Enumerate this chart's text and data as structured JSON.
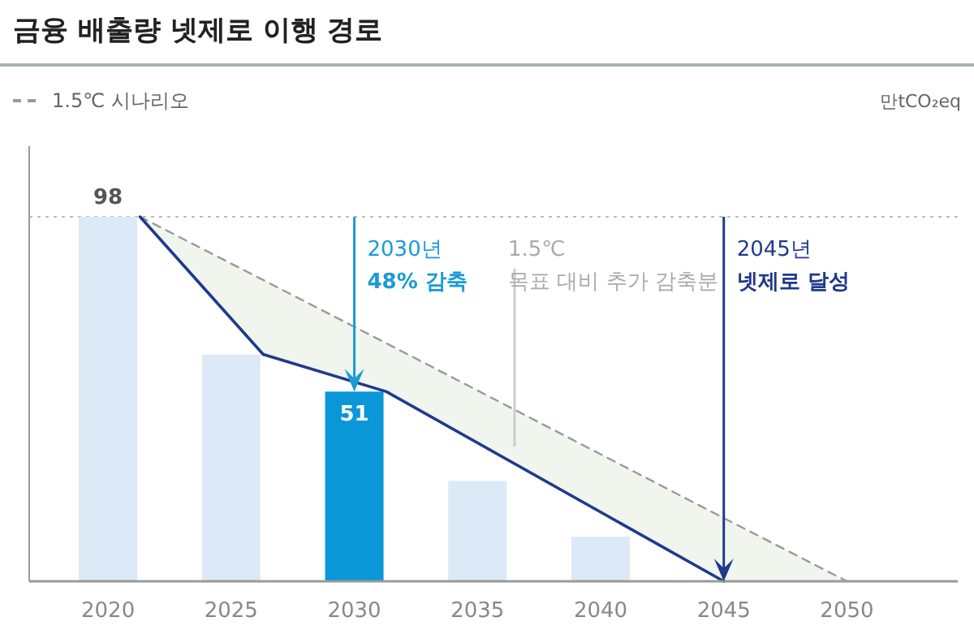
{
  "chart_data": {
    "type": "bar",
    "title": "금융 배출량 넷제로 이행 경로",
    "ylabel": "만tCO₂eq",
    "x": [
      2020,
      2025,
      2030,
      2035,
      2040
    ],
    "xlim": [
      2016.8,
      2054.5
    ],
    "xticks": [
      2020,
      2025,
      2030,
      2035,
      2040,
      2045,
      2050
    ],
    "ylim": [
      0,
      117
    ],
    "tick_labels": "x",
    "legend": "top left",
    "series": [
      {
        "values": [
          98,
          61,
          51,
          27,
          12
        ],
        "colors": [
          "#dce9f6",
          "#dce9f6",
          "#0a97d8",
          "#dce9f6",
          "#dce9f6"
        ],
        "value_labels": [
          "98",
          null,
          "51",
          null,
          null
        ]
      },
      {
        "type": "line",
        "name": "1.5℃ 시나리오",
        "color": "#9a9a9a",
        "line_style": "dashed",
        "x": [
          2021.3,
          2026.3,
          2031.3,
          2045,
          2050
        ],
        "values": [
          98,
          81,
          64,
          17,
          0
        ],
        "lower": [
          98,
          61,
          51,
          0,
          0
        ],
        "upper": [
          98,
          81,
          64,
          17,
          0
        ]
      },
      {
        "type": "line",
        "color": "#1f3a8c",
        "line_style": "solid",
        "x": [
          2021.3,
          2026.3,
          2031.3,
          2045
        ],
        "values": [
          98,
          61,
          51,
          0
        ]
      }
    ],
    "ref_lines": [
      {
        "axis": "y",
        "value": 98,
        "color": "#bbbbbb",
        "line_style": "dotted"
      }
    ],
    "annotations": [
      {
        "text": "2030년\n48% 감축",
        "x": 2030,
        "y": 51
      },
      {
        "text": "2045년\n넷제로 달성",
        "x": 2045,
        "y": 0
      },
      "1.5℃\n목표 대비 추가 감축분"
    ]
  }
}
